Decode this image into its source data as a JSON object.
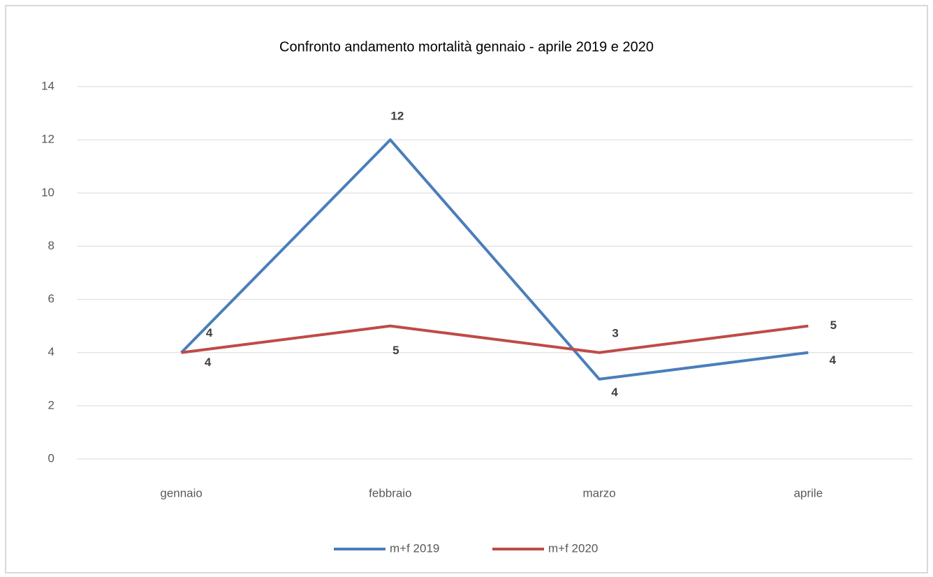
{
  "chart_data": {
    "type": "line",
    "title": "Confronto andamento mortalità gennaio - aprile 2019 e 2020",
    "categories": [
      "gennaio",
      "febbraio",
      "marzo",
      "aprile"
    ],
    "series": [
      {
        "name": "m+f 2019",
        "color": "#4a7ebb",
        "values": [
          4,
          12,
          3,
          4
        ]
      },
      {
        "name": "m+f 2020",
        "color": "#be4b48",
        "values": [
          4,
          5,
          4,
          5
        ]
      }
    ],
    "ylim": [
      0,
      14
    ],
    "yticks": [
      0,
      2,
      4,
      6,
      8,
      10,
      12,
      14
    ],
    "grid": true,
    "legend": "bottom"
  }
}
